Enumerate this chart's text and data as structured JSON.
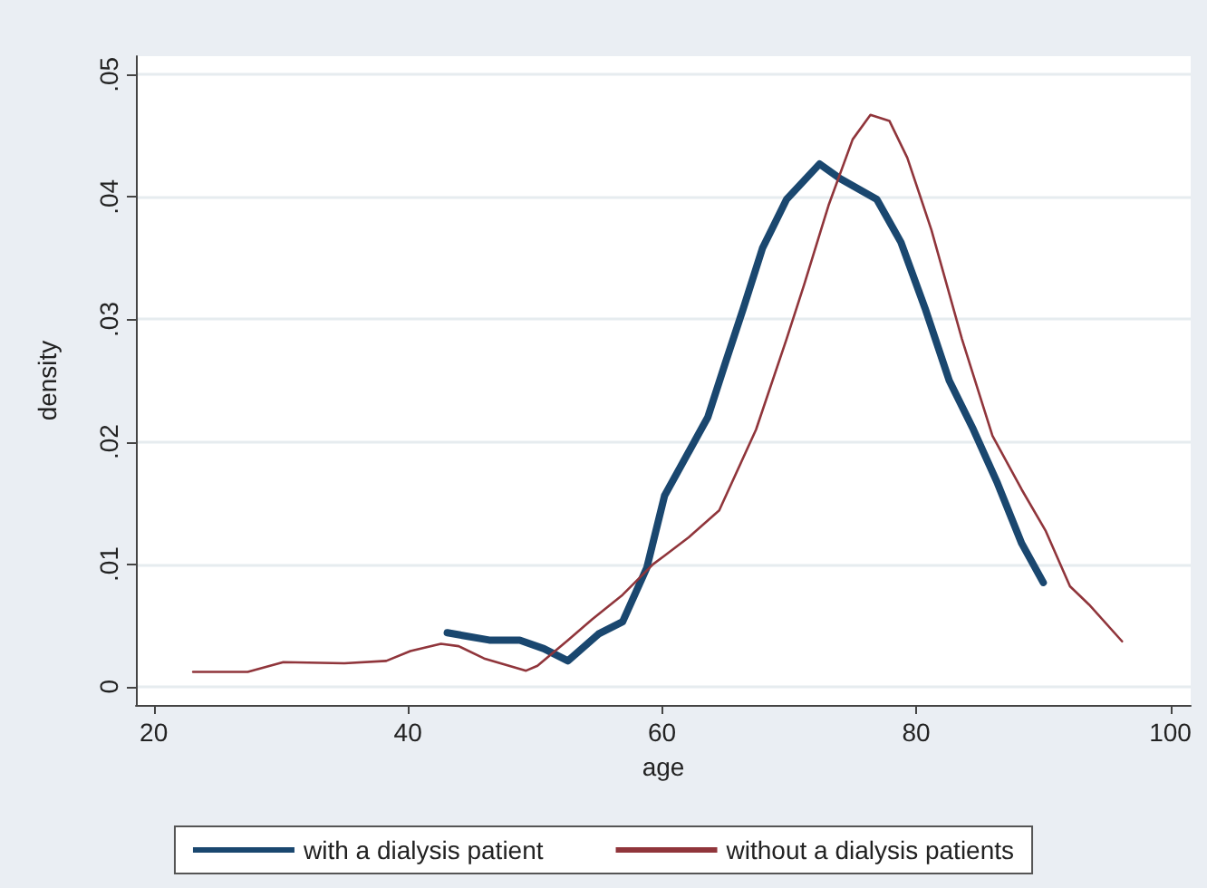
{
  "chart_data": {
    "type": "line",
    "xlabel": "age",
    "ylabel": "density",
    "xlim": [
      18.6,
      101.6
    ],
    "ylim": [
      -0.0015,
      0.0515
    ],
    "xticks": [
      20,
      40,
      60,
      80,
      100
    ],
    "yticks": [
      0,
      {
        "value": 0.01,
        "label": ".01"
      },
      {
        "value": 0.02,
        "label": ".02"
      },
      {
        "value": 0.03,
        "label": ".03"
      },
      {
        "value": 0.04,
        "label": ".04"
      },
      {
        "value": 0.05,
        "label": ".05"
      }
    ],
    "grid": "y",
    "legend": "bottom",
    "marker": "none",
    "line_style": "solid",
    "series": [
      {
        "name": "with a dialysis patient",
        "color": "#1a476f",
        "x": [
          43.1,
          46.4,
          48.8,
          50.7,
          52.6,
          55,
          56.9,
          58.8,
          60.2,
          63.6,
          65,
          66.4,
          67.9,
          69.8,
          72.4,
          74,
          76.9,
          78.8,
          80.7,
          82.6,
          84.5,
          86.4,
          88.3,
          90
        ],
        "values": [
          0.0044,
          0.0038,
          0.0038,
          0.0031,
          0.0021,
          0.0043,
          0.0053,
          0.0097,
          0.0156,
          0.022,
          0.0265,
          0.0309,
          0.0358,
          0.0398,
          0.0427,
          0.0415,
          0.0398,
          0.0363,
          0.0309,
          0.025,
          0.021,
          0.0166,
          0.0117,
          0.0085
        ]
      },
      {
        "name": "without a dialysis patients",
        "color": "#90353b",
        "x": [
          23.1,
          27.4,
          30.2,
          35,
          38.3,
          40.2,
          42.6,
          44,
          46,
          49.3,
          50.2,
          52.6,
          54.5,
          56.9,
          59.3,
          60.2,
          62.1,
          64.5,
          67.4,
          69.8,
          71.2,
          73.1,
          75,
          76.4,
          77.9,
          79.3,
          81.2,
          83.6,
          86,
          88.3,
          90.2,
          92.1,
          93.6,
          96.2
        ],
        "values": [
          0.0012,
          0.0012,
          0.002,
          0.0019,
          0.0021,
          0.0029,
          0.0035,
          0.0033,
          0.0023,
          0.0013,
          0.0017,
          0.0038,
          0.0055,
          0.0075,
          0.01,
          0.0107,
          0.0122,
          0.0144,
          0.021,
          0.0284,
          0.0329,
          0.0393,
          0.0447,
          0.0467,
          0.0462,
          0.0432,
          0.0373,
          0.0284,
          0.0205,
          0.0161,
          0.0127,
          0.0082,
          0.0067,
          0.0037
        ]
      }
    ]
  }
}
